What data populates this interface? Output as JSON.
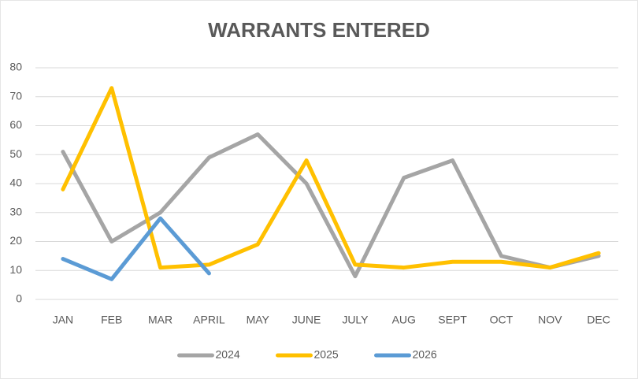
{
  "chart_data": {
    "type": "line",
    "title": "WARRANTS ENTERED",
    "categories": [
      "JAN",
      "FEB",
      "MAR",
      "APRIL",
      "MAY",
      "JUNE",
      "JULY",
      "AUG",
      "SEPT",
      "OCT",
      "NOV",
      "DEC"
    ],
    "series": [
      {
        "name": "2024",
        "color": "#a5a5a5",
        "values": [
          51,
          20,
          30,
          49,
          57,
          40,
          8,
          42,
          48,
          15,
          11,
          15
        ]
      },
      {
        "name": "2025",
        "color": "#ffc000",
        "values": [
          38,
          73,
          11,
          12,
          19,
          48,
          12,
          11,
          13,
          13,
          11,
          16
        ]
      },
      {
        "name": "2026",
        "color": "#5b9bd5",
        "values": [
          14,
          7,
          28,
          9,
          null,
          null,
          null,
          null,
          null,
          null,
          null,
          null
        ]
      }
    ],
    "ylim": [
      0,
      80
    ],
    "yticks": [
      0,
      10,
      20,
      30,
      40,
      50,
      60,
      70,
      80
    ],
    "grid": true,
    "legend": "bottom"
  }
}
